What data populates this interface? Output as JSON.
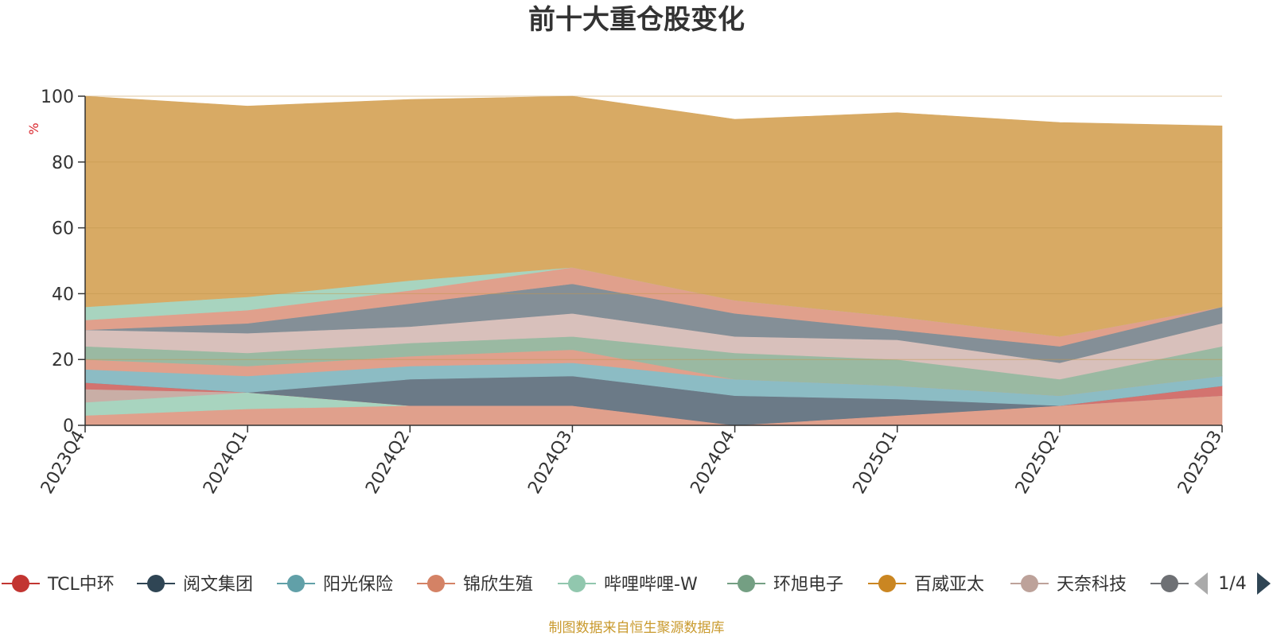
{
  "chart_data": {
    "type": "area",
    "title": "前十大重仓股变化",
    "ylabel": "%",
    "ylim": [
      0,
      100
    ],
    "yticks": [
      "0",
      "20",
      "40",
      "60",
      "80",
      "100"
    ],
    "categories": [
      "2023Q4",
      "2024Q1",
      "2024Q2",
      "2024Q3",
      "2024Q4",
      "2025Q1",
      "2025Q2",
      "2025Q3"
    ],
    "series": [
      {
        "name": "锦欣生殖",
        "color": "#e0a08c",
        "values": [
          3,
          5,
          6,
          6,
          0,
          3,
          6,
          9
        ]
      },
      {
        "name": "哔哩哔哩-W",
        "color": "#a8d4bf",
        "values": [
          4,
          5,
          0,
          0,
          0,
          0,
          0,
          0
        ]
      },
      {
        "name": "天奈科技",
        "color": "#c9aea6",
        "values": [
          4,
          0,
          0,
          0,
          0,
          0,
          0,
          0
        ]
      },
      {
        "name": "TCL中环",
        "color": "#d3736f",
        "values": [
          2,
          0,
          0,
          0,
          0,
          0,
          0,
          3
        ]
      },
      {
        "name": "阅文集团",
        "color": "#6b7a87",
        "values": [
          0,
          0,
          8,
          9,
          9,
          5,
          0,
          0
        ]
      },
      {
        "name": "阳光保险",
        "color": "#8cbcc4",
        "values": [
          4,
          5,
          4,
          4,
          5,
          4,
          3,
          3
        ]
      },
      {
        "name": "锦欣生殖",
        "color": "#e0a08c",
        "values": [
          3,
          3,
          3,
          4,
          0,
          0,
          0,
          0
        ]
      },
      {
        "name": "环旭电子",
        "color": "#9ab9a2",
        "values": [
          4,
          4,
          4,
          4,
          8,
          8,
          5,
          9
        ]
      },
      {
        "name": "天奈科技",
        "color": "#d8c0bb",
        "values": [
          5,
          6,
          5,
          7,
          5,
          6,
          5,
          7
        ]
      },
      {
        "name": "阅文集团",
        "color": "#848f97",
        "values": [
          0,
          3,
          7,
          9,
          7,
          3,
          5,
          5
        ]
      },
      {
        "name": "锦欣生殖",
        "color": "#e0a08c",
        "values": [
          3,
          4,
          4,
          5,
          4,
          4,
          3,
          0
        ]
      },
      {
        "name": "哔哩哔哩-W",
        "color": "#a8d4bf",
        "values": [
          4,
          4,
          3,
          0,
          0,
          0,
          0,
          0
        ]
      },
      {
        "name": "百威亚太",
        "color": "#d8aa64",
        "values": [
          64,
          58,
          55,
          52,
          55,
          62,
          65,
          55
        ]
      }
    ],
    "legend": [
      {
        "name": "TCL中环",
        "color": "#c23531"
      },
      {
        "name": "阅文集团",
        "color": "#2f4554"
      },
      {
        "name": "阳光保险",
        "color": "#61a0a8"
      },
      {
        "name": "锦欣生殖",
        "color": "#d48265"
      },
      {
        "name": "哔哩哔哩-W",
        "color": "#91c7ae"
      },
      {
        "name": "环旭电子",
        "color": "#749f83"
      },
      {
        "name": "百威亚太",
        "color": "#ca8622"
      },
      {
        "name": "天奈科技",
        "color": "#bda29a"
      },
      {
        "name": "",
        "color": "#6e7074"
      }
    ],
    "legend_page": "1/4",
    "source_note": "制图数据来自恒生聚源数据库"
  }
}
